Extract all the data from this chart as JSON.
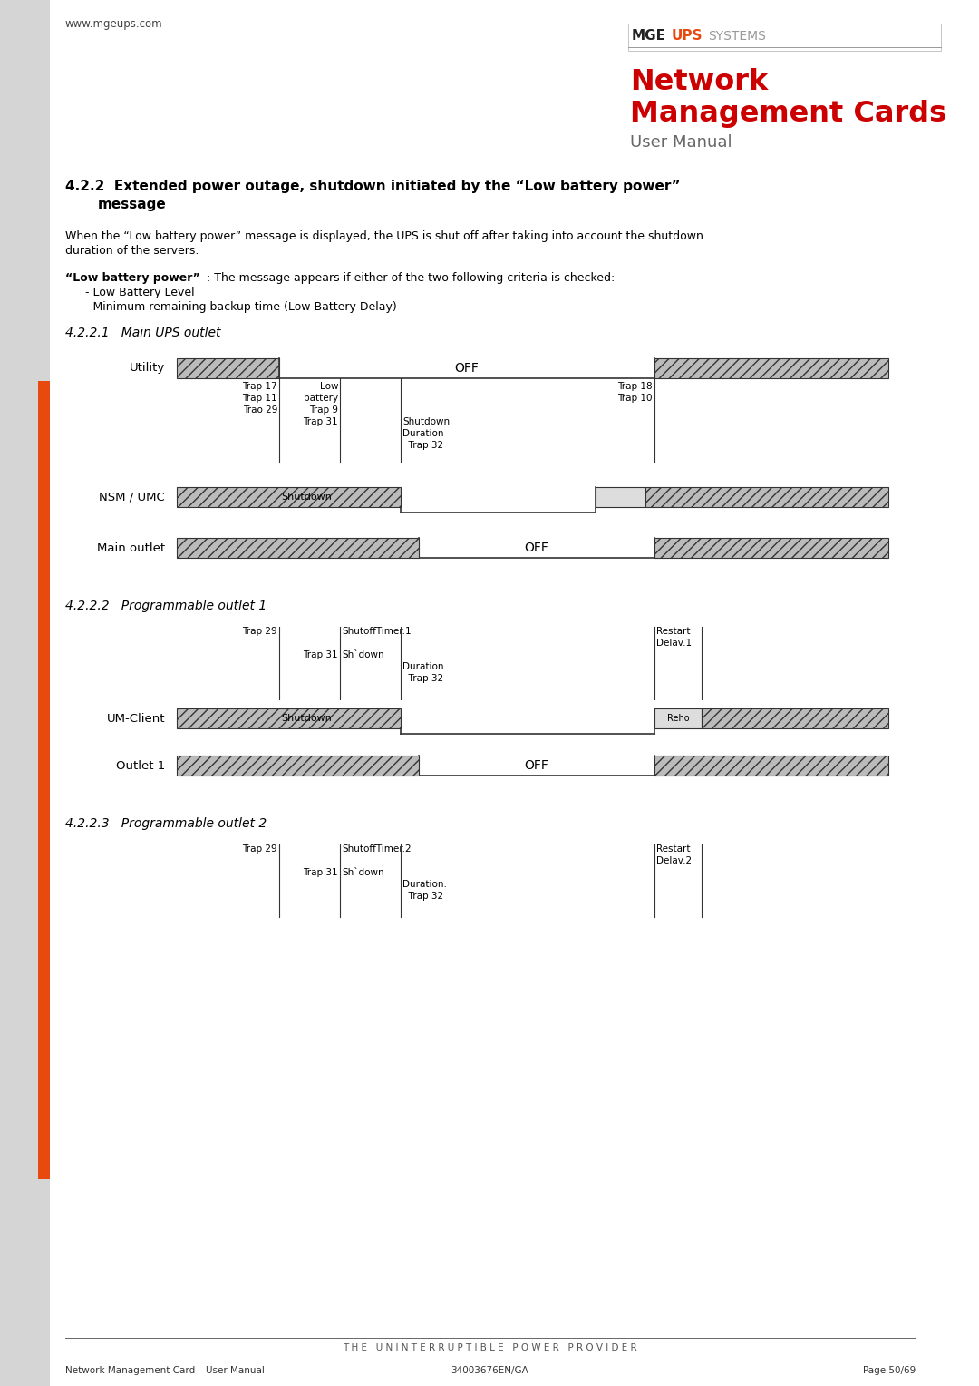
{
  "page_width": 10.8,
  "page_height": 15.28,
  "bg_color": "#ffffff",
  "orange_color": "#e8490f",
  "red_title_color": "#cc0000",
  "gray_bar_color": "#bbbbbb",
  "dark_color": "#333333",
  "mid_gray": "#888888",
  "light_gray": "#dddddd",
  "website": "www.mgeups.com",
  "footer_line1": "T H E   U N I N T E R R U P T I B L E   P O W E R   P R O V I D E R",
  "footer_line2_left": "Network Management Card – User Manual",
  "footer_line2_mid": "34003676EN/GA",
  "footer_line2_right": "Page 50/69"
}
